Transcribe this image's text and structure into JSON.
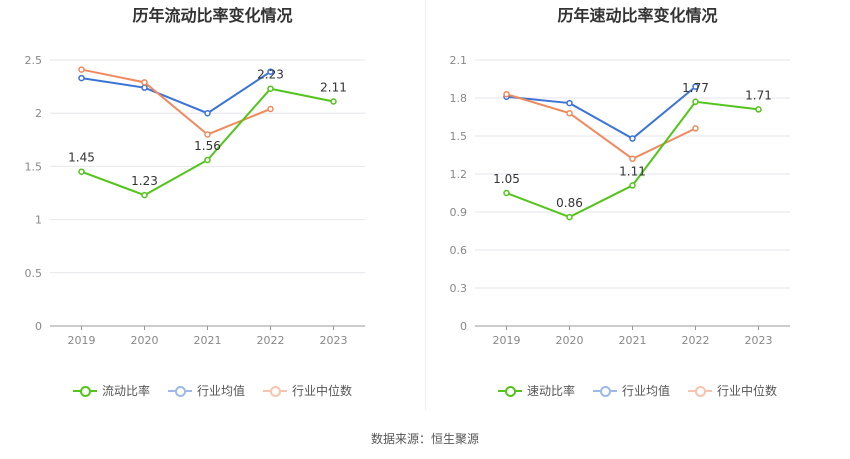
{
  "source_text": "数据来源：恒生聚源",
  "chart_data": [
    {
      "type": "line",
      "title": "历年流动比率变化情况",
      "categories": [
        "2019",
        "2020",
        "2021",
        "2022",
        "2023"
      ],
      "ylim": [
        0,
        2.5
      ],
      "yticks": [
        0,
        0.5,
        1,
        1.5,
        2,
        2.5
      ],
      "ytick_labels": [
        "0",
        "0.5",
        "1",
        "1.5",
        "2",
        "2.5"
      ],
      "grid": true,
      "legend_position": "bottom",
      "series": [
        {
          "name": "流动比率",
          "color": "#52c41a",
          "values": [
            1.45,
            1.23,
            1.56,
            2.23,
            2.11
          ],
          "labels": [
            "1.45",
            "1.23",
            "1.56",
            "2.23",
            "2.11"
          ]
        },
        {
          "name": "行业均值",
          "color": "#3b73d9",
          "values": [
            2.33,
            2.24,
            2.0,
            2.39,
            null
          ]
        },
        {
          "name": "行业中位数",
          "color": "#f08a5d",
          "values": [
            2.41,
            2.29,
            1.8,
            2.04,
            null
          ]
        }
      ]
    },
    {
      "type": "line",
      "title": "历年速动比率变化情况",
      "categories": [
        "2019",
        "2020",
        "2021",
        "2022",
        "2023"
      ],
      "ylim": [
        0,
        2.1
      ],
      "yticks": [
        0,
        0.3,
        0.6,
        0.9,
        1.2,
        1.5,
        1.8,
        2.1
      ],
      "ytick_labels": [
        "0",
        "0.3",
        "0.6",
        "0.9",
        "1.2",
        "1.5",
        "1.8",
        "2.1"
      ],
      "grid": true,
      "legend_position": "bottom",
      "series": [
        {
          "name": "速动比率",
          "color": "#52c41a",
          "values": [
            1.05,
            0.86,
            1.11,
            1.77,
            1.71
          ],
          "labels": [
            "1.05",
            "0.86",
            "1.11",
            "1.77",
            "1.71"
          ]
        },
        {
          "name": "行业均值",
          "color": "#3b73d9",
          "values": [
            1.81,
            1.76,
            1.48,
            1.89,
            null
          ]
        },
        {
          "name": "行业中位数",
          "color": "#f08a5d",
          "values": [
            1.83,
            1.68,
            1.32,
            1.56,
            null
          ]
        }
      ]
    }
  ]
}
